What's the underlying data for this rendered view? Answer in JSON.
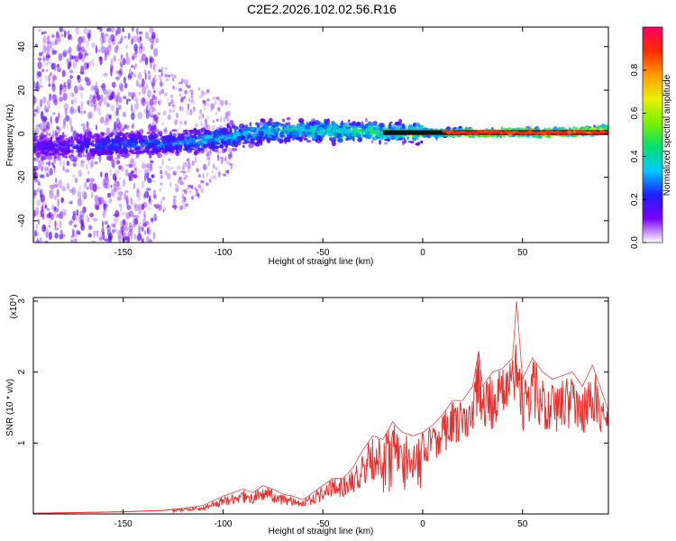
{
  "figure_title": "C2E2.2026.102.02.56.R16",
  "colors": {
    "snr_line": "#e8312f",
    "frame": "#000000",
    "background": "#ffffff",
    "band_core": "#ff2a2a",
    "band_edge": "#111111"
  },
  "chart_data": [
    {
      "type": "heatmap",
      "title": "C2E2.2026.102.02.56.R16",
      "xlabel": "Height of straight line (km)",
      "ylabel": "Frequency (Hz)",
      "xlim": [
        -195,
        93
      ],
      "ylim": [
        -50,
        49
      ],
      "xticks": [
        -150,
        -100,
        -50,
        0,
        50
      ],
      "xtick_labels": [
        "-150",
        "-100",
        "-50",
        "0",
        "50"
      ],
      "yticks": [
        -40,
        -20,
        0,
        20,
        40
      ],
      "ytick_labels": [
        "-40",
        "-20",
        "0",
        "20",
        "40"
      ],
      "colorbar": {
        "label": "Normalized spectral amplitude",
        "range": [
          0,
          1
        ],
        "ticks": [
          0.0,
          0.2,
          0.4,
          0.6,
          0.8
        ],
        "tick_labels": [
          "0.0",
          "0.2",
          "0.4",
          "0.6",
          "0.8"
        ],
        "colormap": [
          "#ffffff",
          "#7b00ff",
          "#1f1fff",
          "#00c8ff",
          "#00e070",
          "#7cf000",
          "#e8f000",
          "#ff9a00",
          "#ff2a00",
          "#ff0066"
        ]
      },
      "description_of_pattern": "Broad scattered noise (amplitude ~0.05-0.2) for x < -130 km; a bright band near 0 Hz whose amplitude grows with height; a narrow strong line at 0-1 Hz (amplitude ~0.8-1.0) for x > 15 km",
      "band_profile": {
        "x": [
          -190,
          -150,
          -120,
          -100,
          -80,
          -60,
          -40,
          -20,
          0,
          20,
          40,
          60,
          80,
          92
        ],
        "center_hz": [
          -6,
          -5,
          -4,
          -2,
          1,
          2,
          1,
          1,
          0.5,
          0.5,
          0.5,
          0.5,
          1,
          2
        ],
        "peak_amplitude": [
          0.2,
          0.3,
          0.35,
          0.4,
          0.45,
          0.5,
          0.55,
          0.55,
          0.7,
          0.9,
          0.95,
          0.95,
          0.9,
          0.9
        ]
      }
    },
    {
      "type": "line",
      "xlabel": "Height of straight line (km)",
      "ylabel": "SNR (10 * v/v)",
      "y_exponent_label": "(x10⁴)",
      "xlim": [
        -195,
        93
      ],
      "ylim": [
        0,
        3.05
      ],
      "xticks": [
        -150,
        -100,
        -50,
        0,
        50
      ],
      "xtick_labels": [
        "-150",
        "-100",
        "-50",
        "0",
        "50"
      ],
      "yticks": [
        1,
        2,
        3
      ],
      "ytick_labels": [
        "1",
        "2",
        "3"
      ],
      "series": [
        {
          "name": "SNR",
          "color": "#e8312f",
          "x": [
            -195,
            -170,
            -150,
            -130,
            -120,
            -110,
            -100,
            -95,
            -90,
            -85,
            -80,
            -75,
            -70,
            -65,
            -60,
            -55,
            -50,
            -45,
            -40,
            -35,
            -30,
            -25,
            -20,
            -15,
            -12,
            -10,
            -5,
            0,
            5,
            10,
            15,
            20,
            25,
            28,
            30,
            35,
            40,
            45,
            47,
            50,
            55,
            60,
            65,
            70,
            75,
            80,
            85,
            90,
            93
          ],
          "values": [
            0.01,
            0.02,
            0.03,
            0.05,
            0.08,
            0.12,
            0.25,
            0.3,
            0.35,
            0.3,
            0.4,
            0.35,
            0.28,
            0.25,
            0.2,
            0.3,
            0.4,
            0.5,
            0.5,
            0.65,
            0.9,
            1.1,
            1.05,
            1.3,
            1.2,
            1.15,
            1.1,
            1.15,
            1.25,
            1.4,
            1.6,
            1.6,
            1.8,
            2.3,
            1.8,
            2.0,
            2.05,
            2.2,
            3.0,
            1.9,
            2.2,
            2.0,
            1.9,
            1.95,
            2.0,
            1.8,
            2.1,
            1.7,
            1.45
          ]
        }
      ]
    }
  ]
}
